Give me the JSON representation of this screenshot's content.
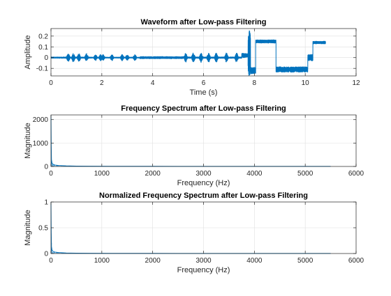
{
  "colors": {
    "series": "#0072BD",
    "axes": "#262626",
    "grid": "#dfdfdf",
    "background": "#ffffff"
  },
  "chart_data": [
    {
      "type": "line",
      "title": "Waveform after Low-pass Filtering",
      "xlabel": "Time (s)",
      "ylabel": "Amplitude",
      "xlim": [
        0,
        12
      ],
      "ylim": [
        -0.17,
        0.27
      ],
      "xticks": [
        0,
        2,
        4,
        6,
        8,
        10,
        12
      ],
      "xtick_labels": [
        "0",
        "2",
        "4",
        "6",
        "8",
        "10",
        "12"
      ],
      "yticks": [
        -0.1,
        0,
        0.1,
        0.2
      ],
      "ytick_labels": [
        "-0.1",
        "0",
        "0.1",
        "0.2"
      ],
      "grid": true,
      "series": [
        {
          "segments": [
            {
              "x0": 0.0,
              "x1": 0.6,
              "center": 0.0,
              "amp": 0.006
            },
            {
              "x0": 0.6,
              "x1": 1.6,
              "center": 0.0,
              "amp": 0.04,
              "bursts": [
                0.68,
                0.88,
                1.1,
                1.4
              ]
            },
            {
              "x0": 1.6,
              "x1": 2.2,
              "center": 0.0,
              "amp": 0.03,
              "bursts": [
                1.75,
                1.95,
                2.05
              ]
            },
            {
              "x0": 2.2,
              "x1": 3.5,
              "center": 0.0,
              "amp": 0.03,
              "bursts": [
                2.4,
                2.8,
                3.0,
                3.3
              ]
            },
            {
              "x0": 3.5,
              "x1": 5.2,
              "center": 0.0,
              "amp": 0.01
            },
            {
              "x0": 5.2,
              "x1": 7.5,
              "center": 0.0,
              "amp": 0.045,
              "bursts": [
                5.3,
                5.6,
                5.9,
                6.2,
                6.5,
                6.9,
                7.3
              ]
            },
            {
              "x0": 7.5,
              "x1": 7.75,
              "center": 0.02,
              "amp": 0.02
            },
            {
              "x0": 7.75,
              "x1": 7.85,
              "center": 0.05,
              "amp": 0.22
            },
            {
              "x0": 7.85,
              "x1": 8.05,
              "center": -0.12,
              "amp": 0.03
            },
            {
              "x0": 8.05,
              "x1": 8.85,
              "center": 0.15,
              "amp": 0.015
            },
            {
              "x0": 8.85,
              "x1": 10.1,
              "center": -0.11,
              "amp": 0.025
            },
            {
              "x0": 10.1,
              "x1": 10.3,
              "center": 0.0,
              "amp": 0.03
            },
            {
              "x0": 10.3,
              "x1": 10.8,
              "center": 0.14,
              "amp": 0.012
            }
          ]
        }
      ]
    },
    {
      "type": "line",
      "title": "Frequency Spectrum after Low-pass Filtering",
      "xlabel": "Frequency (Hz)",
      "ylabel": "Magnitude",
      "xlim": [
        0,
        6000
      ],
      "ylim": [
        0,
        2200
      ],
      "xticks": [
        0,
        1000,
        2000,
        3000,
        4000,
        5000,
        6000
      ],
      "xtick_labels": [
        "0",
        "1000",
        "2000",
        "3000",
        "4000",
        "5000",
        "6000"
      ],
      "yticks": [
        0,
        1000,
        2000
      ],
      "ytick_labels": [
        "0",
        "1000",
        "2000"
      ],
      "grid": true,
      "series": [
        {
          "x": [
            0,
            5,
            10,
            20,
            40,
            80,
            150,
            300,
            500,
            800,
            1200,
            2000,
            3000,
            4000,
            5000,
            5500
          ],
          "y": [
            2200,
            900,
            300,
            150,
            90,
            60,
            40,
            25,
            15,
            10,
            8,
            6,
            5,
            5,
            5,
            4
          ]
        }
      ]
    },
    {
      "type": "line",
      "title": "Normalized Frequency Spectrum after Low-pass Filtering",
      "xlabel": "Frequency (Hz)",
      "ylabel": "Magnitude",
      "xlim": [
        0,
        6000
      ],
      "ylim": [
        0,
        1
      ],
      "xticks": [
        0,
        1000,
        2000,
        3000,
        4000,
        5000,
        6000
      ],
      "xtick_labels": [
        "0",
        "1000",
        "2000",
        "3000",
        "4000",
        "5000",
        "6000"
      ],
      "yticks": [
        0,
        0.5,
        1
      ],
      "ytick_labels": [
        "0",
        "0.5",
        "1"
      ],
      "grid": true,
      "series": [
        {
          "x": [
            0,
            5,
            10,
            20,
            40,
            80,
            150,
            300,
            500,
            800,
            1200,
            2000,
            3000,
            4000,
            5000,
            5500
          ],
          "y": [
            1,
            0.41,
            0.14,
            0.07,
            0.04,
            0.027,
            0.018,
            0.011,
            0.007,
            0.005,
            0.004,
            0.003,
            0.002,
            0.002,
            0.002,
            0.002
          ]
        }
      ]
    }
  ]
}
